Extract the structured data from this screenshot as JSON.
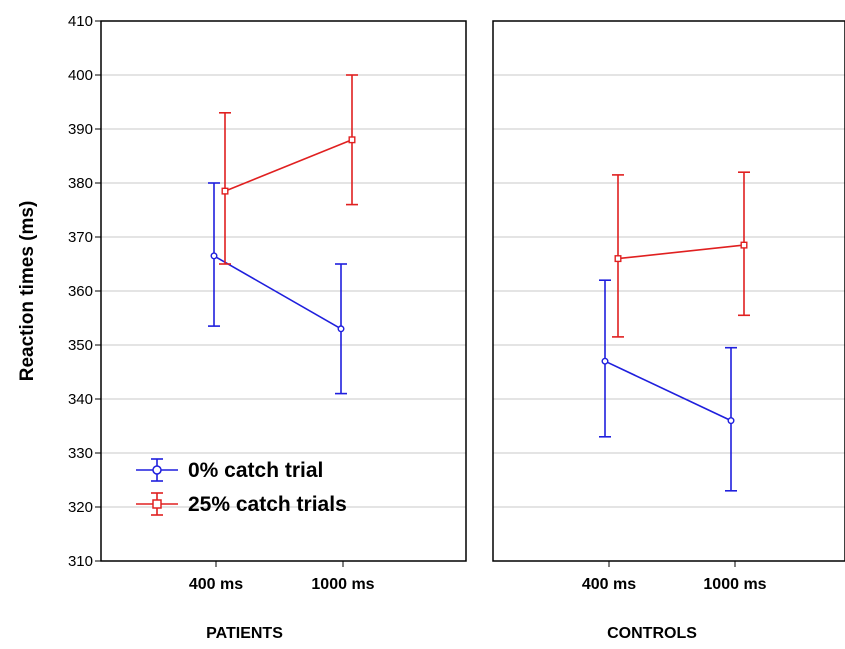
{
  "chart_data": {
    "type": "line",
    "ylabel": "Reaction times (ms)",
    "ylim": [
      310,
      410
    ],
    "yticks": [
      310,
      320,
      330,
      340,
      350,
      360,
      370,
      380,
      390,
      400,
      410
    ],
    "categories": [
      "400 ms",
      "1000 ms"
    ],
    "grid": "horizontal",
    "legend_position": "bottom-left",
    "series_colors": {
      "0% catch trial": "#1f1fdd",
      "25% catch trials": "#e02020"
    },
    "panels": [
      {
        "label": "PATIENTS",
        "series": [
          {
            "name": "0% catch trial",
            "values": [
              366.5,
              353.0
            ],
            "error_low": [
              353.5,
              341.0
            ],
            "error_high": [
              380.0,
              365.0
            ]
          },
          {
            "name": "25% catch trials",
            "values": [
              378.5,
              388.0
            ],
            "error_low": [
              365.0,
              376.0
            ],
            "error_high": [
              393.0,
              400.0
            ]
          }
        ]
      },
      {
        "label": "CONTROLS",
        "series": [
          {
            "name": "0% catch trial",
            "values": [
              347.0,
              336.0
            ],
            "error_low": [
              333.0,
              323.0
            ],
            "error_high": [
              362.0,
              349.5
            ]
          },
          {
            "name": "25% catch trials",
            "values": [
              366.0,
              368.5
            ],
            "error_low": [
              351.5,
              355.5
            ],
            "error_high": [
              381.5,
              382.0
            ]
          }
        ]
      }
    ]
  }
}
